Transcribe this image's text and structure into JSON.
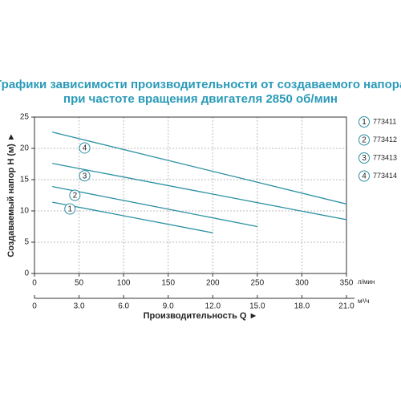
{
  "chart_data": {
    "type": "line",
    "title": [
      "Графики зависимости производительности от создаваемого напора",
      "при частоте вращения двигателя 2850 об/мин"
    ],
    "y_label": "Создаваемый напор H (м) ►",
    "x_label": "Производительность Q ►",
    "x_unit": "л/мин",
    "x2_unit": "м³/ч",
    "xlim": [
      0,
      350
    ],
    "xticks": [
      0,
      50,
      100,
      150,
      200,
      250,
      300,
      350
    ],
    "x2lim": [
      0,
      21
    ],
    "x2ticks": [
      0,
      {
        "value": 3,
        "label": "3.0"
      },
      {
        "value": 6,
        "label": "6.0"
      },
      {
        "value": 9,
        "label": "9.0"
      },
      {
        "value": 12,
        "label": "12.0"
      },
      {
        "value": 15,
        "label": "15.0"
      },
      {
        "value": 18,
        "label": "18.0"
      },
      {
        "value": 21,
        "label": "21.0"
      }
    ],
    "ylim": [
      0,
      25
    ],
    "yticks": [
      0,
      5,
      10,
      15,
      20,
      25
    ],
    "grid": true,
    "series": [
      {
        "name": "773411",
        "key": "1",
        "color": "#2b8fa3",
        "x": [
          20,
          200
        ],
        "values": [
          11.4,
          6.5
        ]
      },
      {
        "name": "773412",
        "key": "2",
        "color": "#2b8fa3",
        "x": [
          20,
          250
        ],
        "values": [
          13.9,
          7.5
        ]
      },
      {
        "name": "773413",
        "key": "3",
        "color": "#2b8fa3",
        "x": [
          20,
          350
        ],
        "values": [
          17.6,
          8.6
        ]
      },
      {
        "name": "773414",
        "key": "4",
        "color": "#2b8fa3",
        "x": [
          20,
          350
        ],
        "values": [
          22.6,
          11.1
        ]
      }
    ]
  }
}
